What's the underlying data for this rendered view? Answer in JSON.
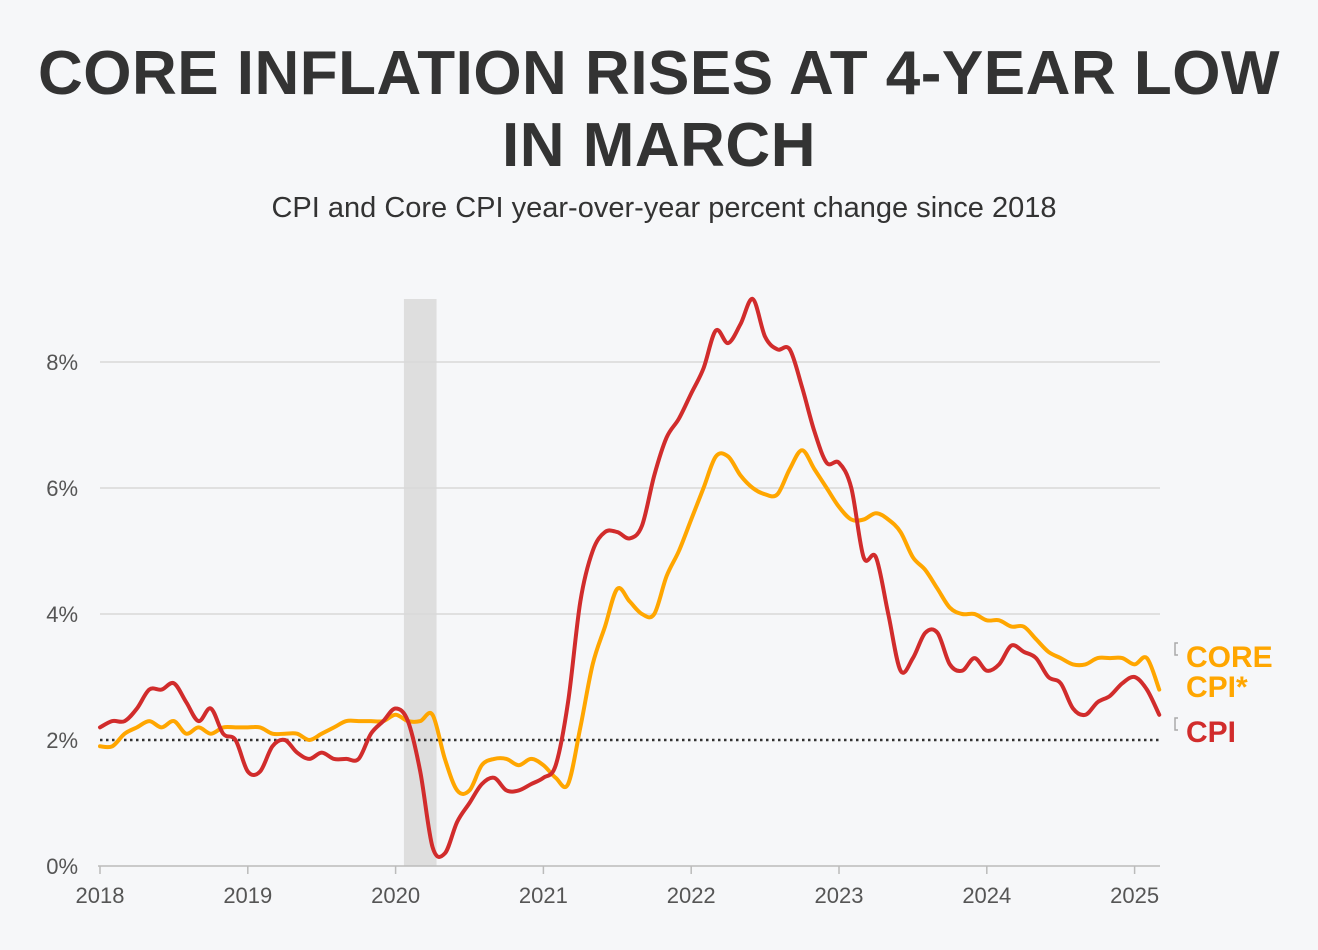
{
  "chart_data": {
    "type": "line",
    "title": "CORE INFLATION RISES AT 4-YEAR LOW IN MARCH",
    "subtitle": "CPI and Core CPI year-over-year percent change since 2018",
    "xlabel": "",
    "ylabel": "",
    "x_start": "2018-01",
    "x_frequency": "monthly",
    "xlim": [
      "2018-01",
      "2025-03"
    ],
    "ylim": [
      0,
      9
    ],
    "x_ticks": [
      "2018",
      "2019",
      "2020",
      "2021",
      "2022",
      "2023",
      "2024",
      "2025"
    ],
    "y_ticks": [
      "0%",
      "2%",
      "4%",
      "6%",
      "8%"
    ],
    "grid": "horizontal",
    "reference_line": {
      "value": 2,
      "style": "dotted"
    },
    "shaded_period": [
      "2020-02",
      "2020-04"
    ],
    "legend": "direct labels at right",
    "series": [
      {
        "name": "CORE CPI*",
        "label_lines": [
          "CORE",
          "CPI*"
        ],
        "color": "#ffa600",
        "values": [
          1.9,
          1.9,
          2.1,
          2.2,
          2.3,
          2.2,
          2.3,
          2.1,
          2.2,
          2.1,
          2.2,
          2.2,
          2.2,
          2.2,
          2.1,
          2.1,
          2.1,
          2.0,
          2.1,
          2.2,
          2.3,
          2.3,
          2.3,
          2.3,
          2.4,
          2.3,
          2.3,
          2.4,
          1.7,
          1.2,
          1.2,
          1.6,
          1.7,
          1.7,
          1.6,
          1.7,
          1.6,
          1.4,
          1.3,
          2.2,
          3.2,
          3.8,
          4.4,
          4.2,
          4.0,
          4.0,
          4.6,
          5.0,
          5.5,
          6.0,
          6.5,
          6.5,
          6.2,
          6.0,
          5.9,
          5.9,
          6.3,
          6.6,
          6.3,
          6.0,
          5.7,
          5.5,
          5.5,
          5.6,
          5.5,
          5.3,
          4.9,
          4.7,
          4.4,
          4.1,
          4.0,
          4.0,
          3.9,
          3.9,
          3.8,
          3.8,
          3.6,
          3.4,
          3.3,
          3.2,
          3.2,
          3.3,
          3.3,
          3.3,
          3.2,
          3.3,
          2.8
        ]
      },
      {
        "name": "CPI",
        "label_lines": [
          "CPI"
        ],
        "color": "#d12c2c",
        "values": [
          2.2,
          2.3,
          2.3,
          2.5,
          2.8,
          2.8,
          2.9,
          2.6,
          2.3,
          2.5,
          2.1,
          2.0,
          1.5,
          1.5,
          1.9,
          2.0,
          1.8,
          1.7,
          1.8,
          1.7,
          1.7,
          1.7,
          2.1,
          2.3,
          2.5,
          2.3,
          1.5,
          0.3,
          0.2,
          0.7,
          1.0,
          1.3,
          1.4,
          1.2,
          1.2,
          1.3,
          1.4,
          1.6,
          2.6,
          4.2,
          5.0,
          5.3,
          5.3,
          5.2,
          5.4,
          6.2,
          6.8,
          7.1,
          7.5,
          7.9,
          8.5,
          8.3,
          8.6,
          9.0,
          8.4,
          8.2,
          8.2,
          7.6,
          6.9,
          6.4,
          6.4,
          6.0,
          4.9,
          4.9,
          4.0,
          3.1,
          3.3,
          3.7,
          3.7,
          3.2,
          3.1,
          3.3,
          3.1,
          3.2,
          3.5,
          3.4,
          3.3,
          3.0,
          2.9,
          2.5,
          2.4,
          2.6,
          2.7,
          2.9,
          3.0,
          2.8,
          2.4
        ]
      }
    ]
  }
}
